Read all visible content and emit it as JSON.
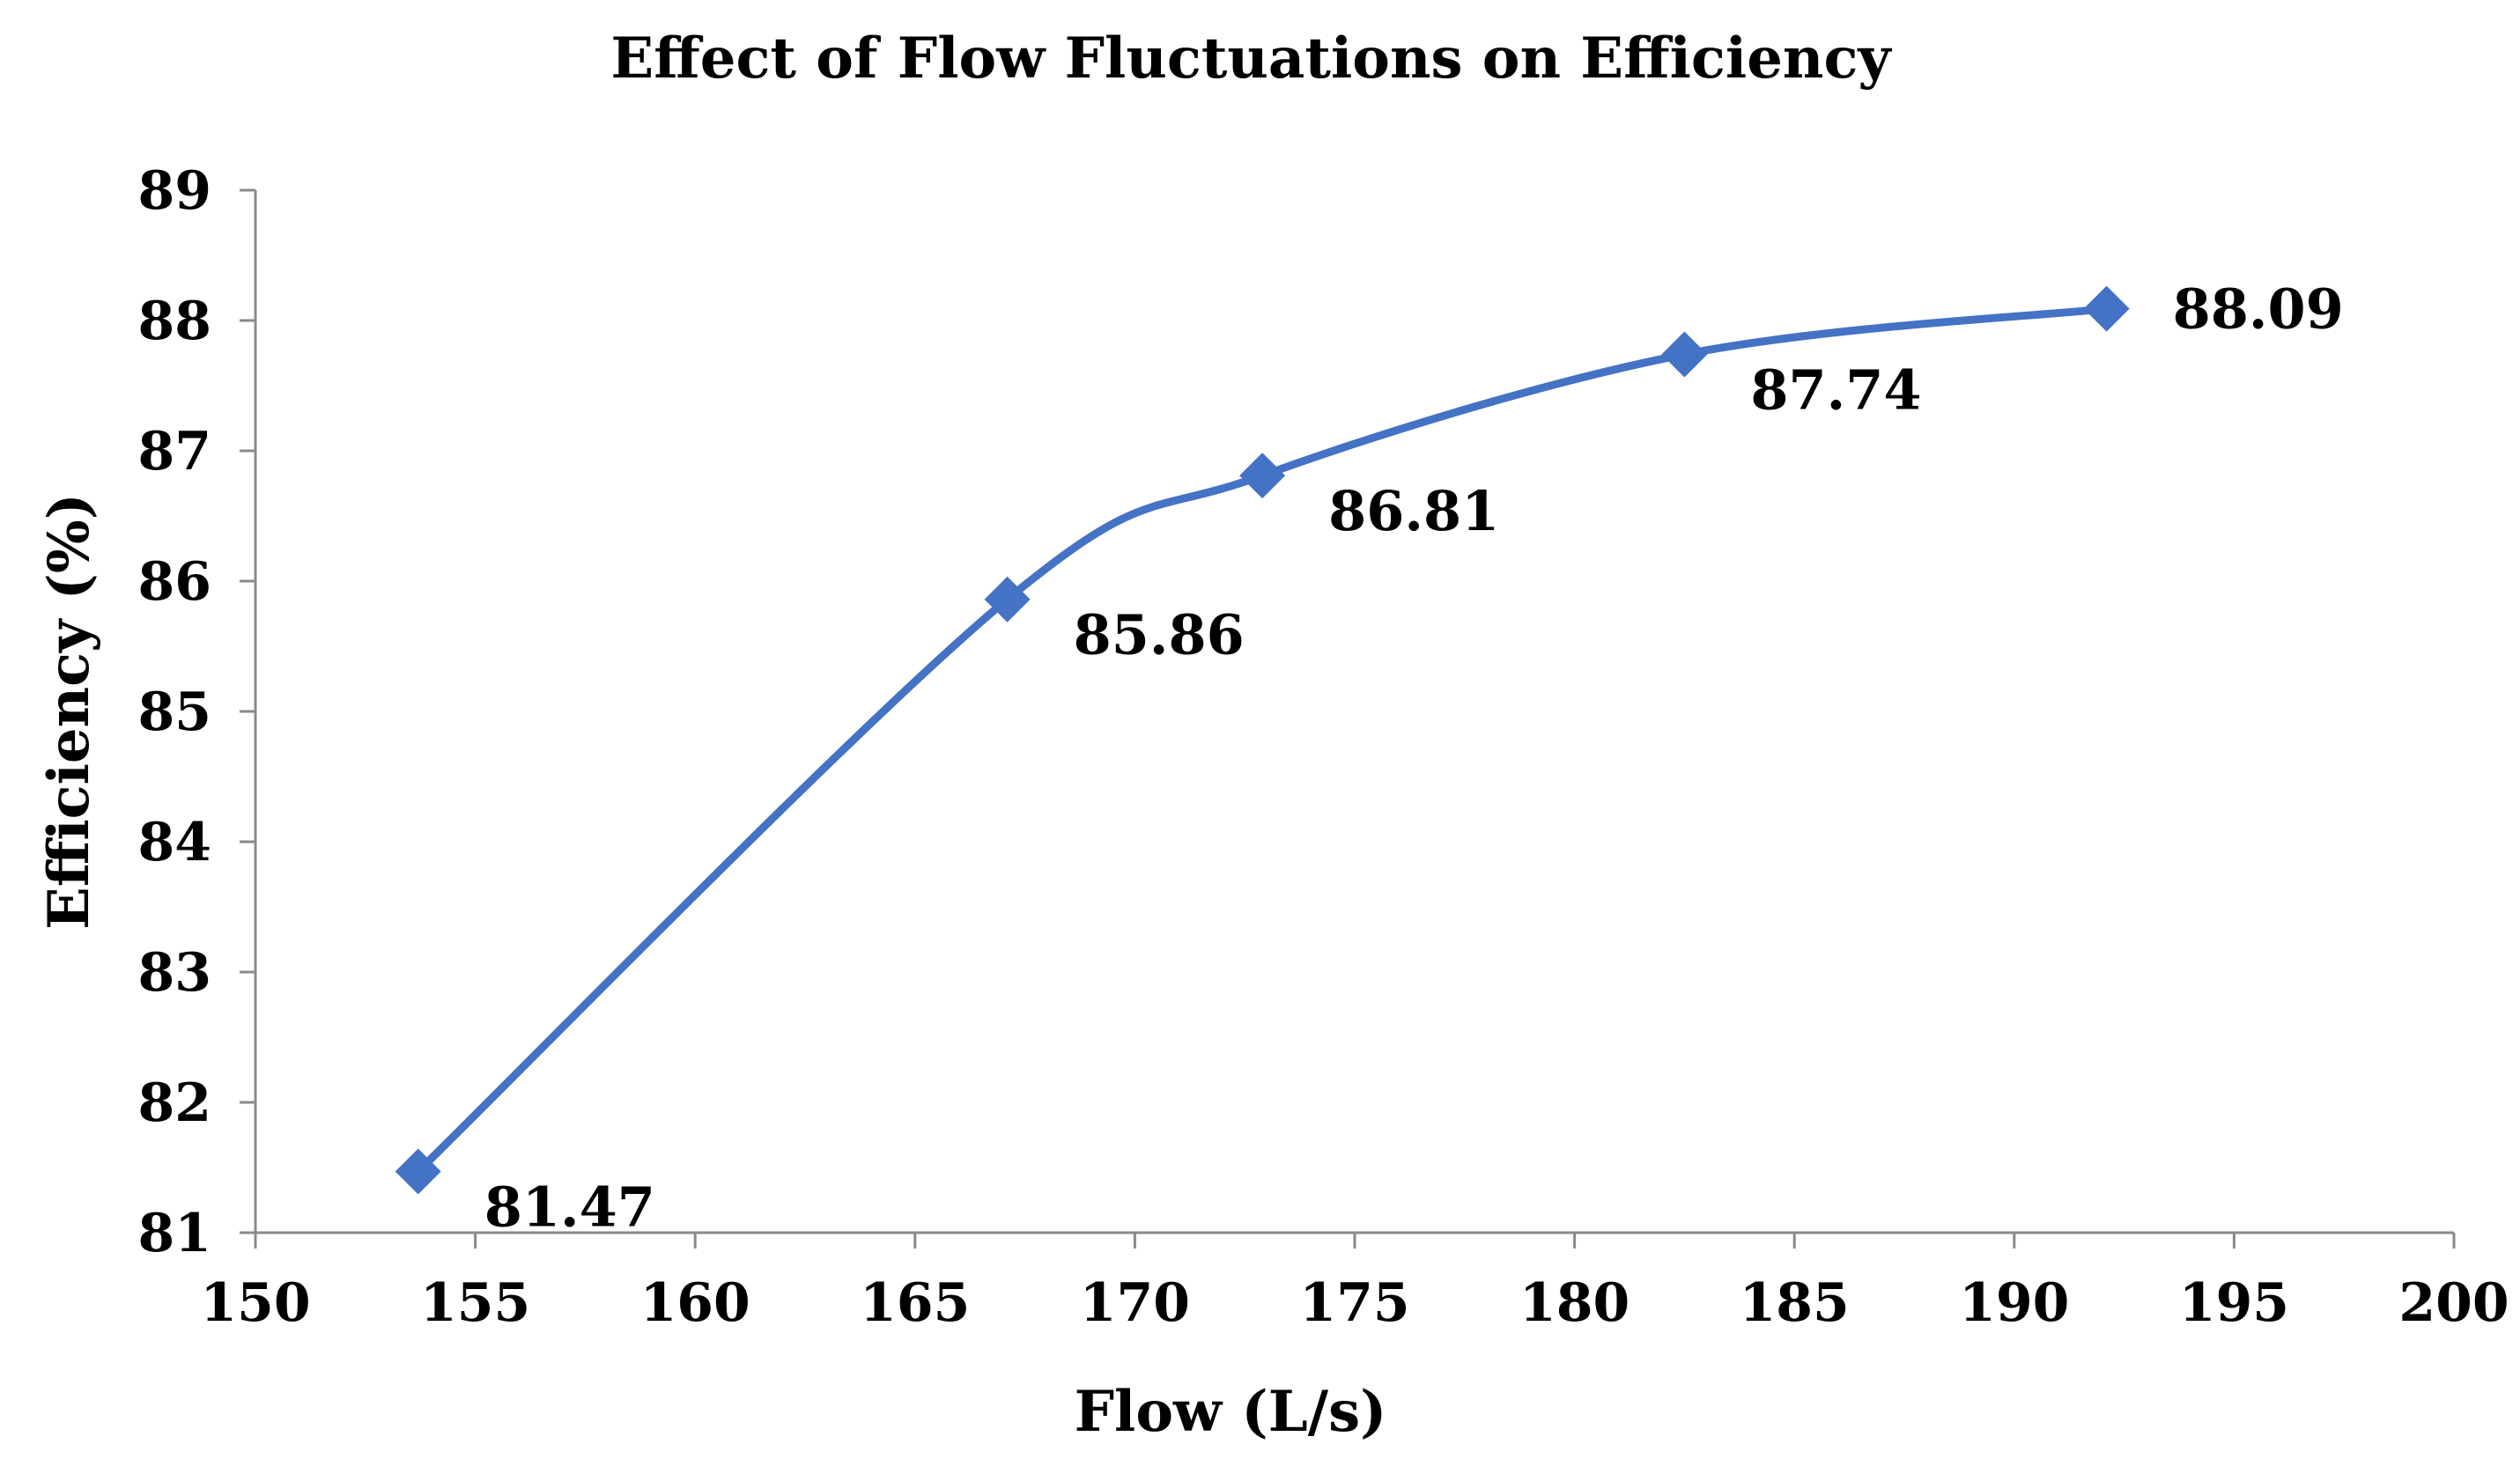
{
  "chart_data": {
    "type": "line",
    "title": "Effect of Flow Fluctuations on  Efficiency",
    "xlabel": "Flow (L/s)",
    "ylabel": "Efficiency (%)",
    "xlim": [
      150,
      200
    ],
    "ylim": [
      81,
      89
    ],
    "x_ticks": [
      "150",
      "155",
      "160",
      "165",
      "170",
      "175",
      "180",
      "185",
      "190",
      "195",
      "200"
    ],
    "y_ticks": [
      "81",
      "82",
      "83",
      "84",
      "85",
      "86",
      "87",
      "88",
      "89"
    ],
    "grid": false,
    "smooth": true,
    "marker": "diamond",
    "series": [
      {
        "name": "Efficiency",
        "color": "#4472C4",
        "x": [
          153.7,
          167.1,
          172.9,
          182.5,
          192.1
        ],
        "y": [
          81.47,
          85.86,
          86.81,
          87.74,
          88.09
        ],
        "labels": [
          "81.47",
          "85.86",
          "86.81",
          "87.74",
          "88.09"
        ],
        "label_positions": [
          "right-below",
          "right-below",
          "right-below",
          "right-below",
          "right"
        ]
      }
    ]
  }
}
